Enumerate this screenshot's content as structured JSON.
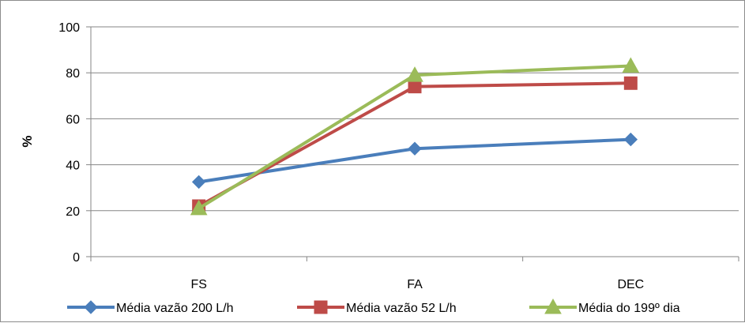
{
  "chart_data": {
    "type": "line",
    "title": "",
    "xlabel": "",
    "ylabel": "%",
    "categories": [
      "FS",
      "FA",
      "DEC"
    ],
    "ylim": [
      0,
      100
    ],
    "yticks": [
      0,
      20,
      40,
      60,
      80,
      100
    ],
    "grid": "horizontal",
    "legend_position": "bottom",
    "series": [
      {
        "name": "Média vazão 200 L/h",
        "values": [
          32.5,
          47,
          51
        ],
        "color": "#4a7ebb",
        "marker": "diamond"
      },
      {
        "name": "Média vazão 52 L/h",
        "values": [
          22,
          74,
          75.5
        ],
        "color": "#be4b48",
        "marker": "square"
      },
      {
        "name": "Média do 199º dia",
        "values": [
          21,
          79,
          83
        ],
        "color": "#9bbb59",
        "marker": "triangle"
      }
    ]
  }
}
